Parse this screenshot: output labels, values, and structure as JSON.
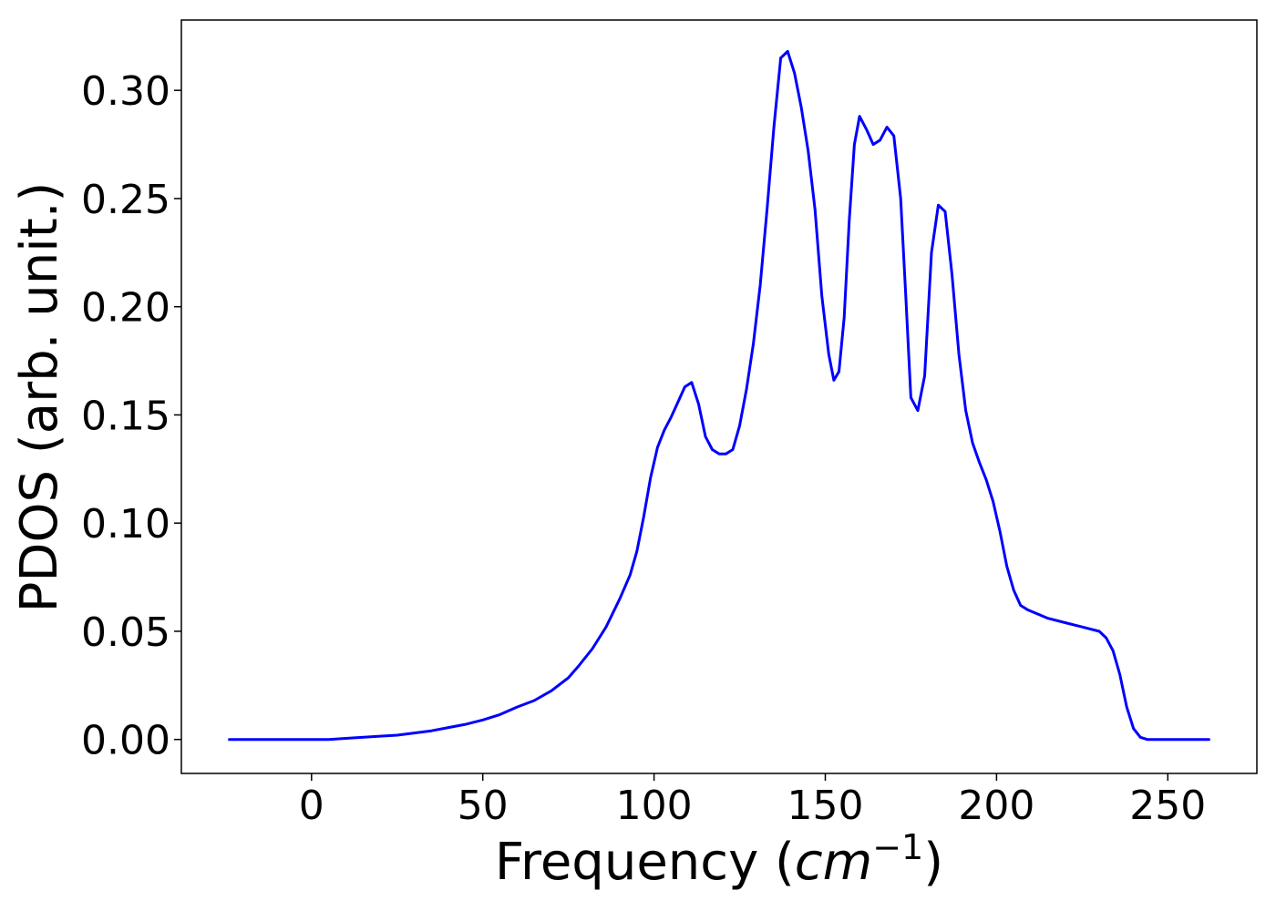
{
  "chart_data": {
    "type": "line",
    "title": "",
    "xlabel": "Frequency",
    "xlabel_unit_base": "cm",
    "xlabel_unit_exponent": "−1",
    "ylabel": "PDOS (arb. unit.)",
    "xlim": [
      -38,
      276
    ],
    "ylim": [
      -0.0157,
      0.3325
    ],
    "xticks": [
      0,
      50,
      100,
      150,
      200,
      250
    ],
    "xtick_labels": [
      "0",
      "50",
      "100",
      "150",
      "200",
      "250"
    ],
    "yticks": [
      0.0,
      0.05,
      0.1,
      0.15,
      0.2,
      0.25,
      0.3
    ],
    "ytick_labels": [
      "0.00",
      "0.05",
      "0.10",
      "0.15",
      "0.20",
      "0.25",
      "0.30"
    ],
    "grid": false,
    "legend": "none",
    "series": [
      {
        "color": "#0000ff",
        "x": [
          -24,
          0,
          5,
          10,
          20,
          25,
          30,
          35,
          40,
          45,
          50,
          55,
          60,
          65,
          70,
          75,
          78,
          82,
          86,
          90,
          93,
          95,
          97,
          99,
          101,
          103,
          105,
          107,
          109,
          111,
          113,
          115,
          117,
          119,
          121,
          123,
          125,
          127,
          129,
          131,
          133,
          135,
          137,
          139,
          141,
          143,
          145,
          147,
          149,
          151,
          152.5,
          154,
          155.5,
          157,
          158.5,
          160,
          162,
          164,
          166,
          168,
          170,
          172,
          173.5,
          175,
          177,
          179,
          181,
          183,
          185,
          187,
          189,
          191,
          193,
          195,
          197,
          199,
          201,
          203,
          205,
          207,
          209,
          212,
          215,
          220,
          225,
          230,
          232,
          234,
          236,
          238,
          240,
          242,
          244,
          250,
          262
        ],
        "values": [
          0.0,
          0.0,
          0.0,
          0.0005,
          0.0015,
          0.002,
          0.003,
          0.004,
          0.0055,
          0.007,
          0.009,
          0.0115,
          0.015,
          0.018,
          0.0225,
          0.0285,
          0.034,
          0.042,
          0.052,
          0.065,
          0.076,
          0.087,
          0.103,
          0.121,
          0.135,
          0.143,
          0.149,
          0.156,
          0.163,
          0.165,
          0.155,
          0.14,
          0.134,
          0.132,
          0.132,
          0.134,
          0.145,
          0.162,
          0.183,
          0.21,
          0.245,
          0.283,
          0.315,
          0.318,
          0.308,
          0.292,
          0.272,
          0.245,
          0.205,
          0.178,
          0.166,
          0.17,
          0.195,
          0.24,
          0.275,
          0.288,
          0.282,
          0.275,
          0.277,
          0.283,
          0.279,
          0.25,
          0.205,
          0.158,
          0.152,
          0.168,
          0.225,
          0.247,
          0.244,
          0.215,
          0.178,
          0.152,
          0.137,
          0.128,
          0.12,
          0.11,
          0.096,
          0.08,
          0.069,
          0.062,
          0.06,
          0.058,
          0.056,
          0.054,
          0.052,
          0.05,
          0.047,
          0.041,
          0.03,
          0.015,
          0.005,
          0.001,
          0.0,
          0.0,
          0.0
        ]
      }
    ]
  }
}
